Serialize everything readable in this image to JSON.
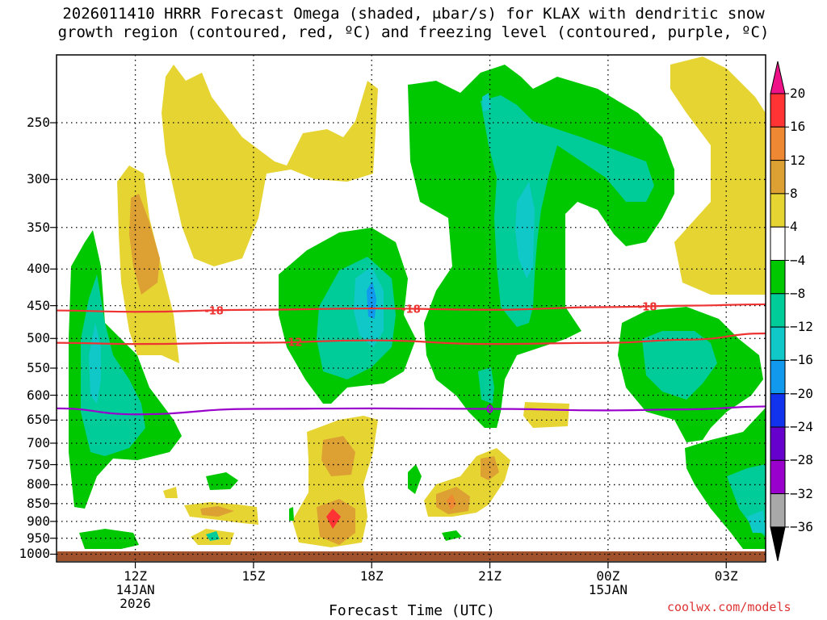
{
  "title_line1": "2026011410 HRRR Forecast Omega (shaded, μbar/s) for KLAX with dendritic snow",
  "title_line2": "growth region (contoured, red, ºC) and freezing level (contoured, purple, ºC)",
  "watermark": "coolwx.com/models",
  "chart_data": {
    "type": "time-height contour",
    "xlabel": "Forecast Time (UTC)",
    "ylabel": "",
    "x_ticks": [
      {
        "hour": 12,
        "label": "12Z",
        "sub1": "14JAN",
        "sub2": "2026"
      },
      {
        "hour": 15,
        "label": "15Z",
        "sub1": "",
        "sub2": ""
      },
      {
        "hour": 18,
        "label": "18Z",
        "sub1": "",
        "sub2": ""
      },
      {
        "hour": 21,
        "label": "21Z",
        "sub1": "",
        "sub2": ""
      },
      {
        "hour": 24,
        "label": "00Z",
        "sub1": "15JAN",
        "sub2": ""
      },
      {
        "hour": 27,
        "label": "03Z",
        "sub1": "",
        "sub2": ""
      }
    ],
    "xlim_hours": [
      10,
      28
    ],
    "y_ticks": [
      250,
      300,
      350,
      400,
      450,
      500,
      550,
      600,
      650,
      700,
      750,
      800,
      850,
      900,
      950,
      1000
    ],
    "ylim_hPa": [
      1025,
      200
    ],
    "y_scale": "log-pressure",
    "grid": true,
    "colorbar": {
      "levels": [
        "20",
        "16",
        "12",
        "8",
        "4",
        "−4",
        "−8",
        "−12",
        "−16",
        "−20",
        "−24",
        "−28",
        "−32",
        "−36"
      ],
      "colors": [
        "#ff3333",
        "#ee8833",
        "#dda033",
        "#e6d433",
        "#ffffff",
        "#00c800",
        "#00cc99",
        "#11c8c8",
        "#1199ee",
        "#1133ee",
        "#6600cc",
        "#9900cc",
        "#a8a8a8"
      ],
      "top_arrow_color": "#ee1188",
      "bottom_arrow_color": "#000000"
    },
    "contours": [
      {
        "name": "-18",
        "color": "#ee3333",
        "label_hours": [
          14,
          19,
          25
        ],
        "points": [
          [
            10,
            457
          ],
          [
            12,
            459
          ],
          [
            15,
            456
          ],
          [
            18,
            454
          ],
          [
            21,
            456
          ],
          [
            24,
            452
          ],
          [
            26,
            450
          ],
          [
            28,
            448
          ]
        ]
      },
      {
        "name": "-12",
        "color": "#ee3333",
        "label_hours": [
          16
        ],
        "points": [
          [
            10,
            507
          ],
          [
            12,
            509
          ],
          [
            15,
            507
          ],
          [
            18,
            503
          ],
          [
            21,
            509
          ],
          [
            24,
            507
          ],
          [
            26,
            502
          ],
          [
            28,
            492
          ]
        ]
      },
      {
        "name": "0",
        "color": "#9900cc",
        "label_hours": [
          21
        ],
        "points": [
          [
            10,
            626
          ],
          [
            12,
            638
          ],
          [
            15,
            627
          ],
          [
            18,
            626
          ],
          [
            21,
            627
          ],
          [
            24,
            630
          ],
          [
            26,
            628
          ],
          [
            28,
            622
          ]
        ]
      }
    ]
  }
}
